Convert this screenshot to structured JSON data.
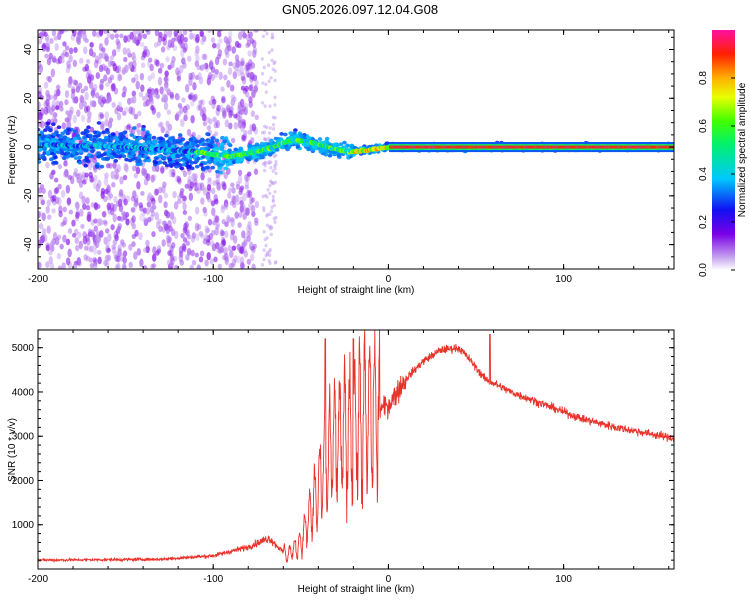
{
  "title": "GN05.2026.097.12.04.G08",
  "chart_data": [
    {
      "type": "heatmap",
      "name": "spectrogram",
      "xlabel": "Height of straight line (km)",
      "ylabel": "Frequency (Hz)",
      "xlim": [
        -200,
        163
      ],
      "ylim": [
        -50,
        48
      ],
      "xticks": [
        -200,
        -100,
        0,
        100
      ],
      "yticks": [
        -40,
        -20,
        0,
        20,
        40
      ],
      "ridge": [
        {
          "x": -200,
          "y": 1
        },
        {
          "x": -150,
          "y": 0
        },
        {
          "x": -110,
          "y": -2
        },
        {
          "x": -90,
          "y": -4
        },
        {
          "x": -70,
          "y": -1
        },
        {
          "x": -55,
          "y": 3
        },
        {
          "x": -45,
          "y": 2
        },
        {
          "x": -30,
          "y": -1
        },
        {
          "x": -20,
          "y": -2
        },
        {
          "x": -10,
          "y": -1
        },
        {
          "x": 0,
          "y": 0
        },
        {
          "x": 163,
          "y": 0
        }
      ],
      "colorbar": {
        "label": "Normalized spectral amplitude",
        "range": [
          0,
          1
        ],
        "ticks": [
          "0.0",
          "0.2",
          "0.4",
          "0.6",
          "0.8"
        ]
      }
    },
    {
      "type": "line",
      "name": "snr",
      "xlabel": "Height of straight line (km)",
      "ylabel": "SNR (10 * v/v)",
      "xlim": [
        -200,
        163
      ],
      "ylim": [
        0,
        5400
      ],
      "xticks": [
        -200,
        -100,
        0,
        100
      ],
      "yticks": [
        1000,
        2000,
        3000,
        4000,
        5000
      ],
      "color": "#e8322a",
      "envelope": [
        {
          "x": -200,
          "y": 200
        },
        {
          "x": -130,
          "y": 220
        },
        {
          "x": -100,
          "y": 300
        },
        {
          "x": -80,
          "y": 500
        },
        {
          "x": -68,
          "y": 700
        },
        {
          "x": -58,
          "y": 300
        },
        {
          "x": -50,
          "y": 600
        },
        {
          "x": -40,
          "y": 1800
        },
        {
          "x": -32,
          "y": 2800
        },
        {
          "x": -20,
          "y": 3200
        },
        {
          "x": -10,
          "y": 3500
        },
        {
          "x": 0,
          "y": 3700
        },
        {
          "x": 10,
          "y": 4300
        },
        {
          "x": 20,
          "y": 4700
        },
        {
          "x": 30,
          "y": 4950
        },
        {
          "x": 40,
          "y": 5000
        },
        {
          "x": 45,
          "y": 4800
        },
        {
          "x": 55,
          "y": 4300
        },
        {
          "x": 70,
          "y": 4000
        },
        {
          "x": 90,
          "y": 3700
        },
        {
          "x": 110,
          "y": 3400
        },
        {
          "x": 130,
          "y": 3200
        },
        {
          "x": 150,
          "y": 3050
        },
        {
          "x": 163,
          "y": 2950
        }
      ]
    }
  ]
}
